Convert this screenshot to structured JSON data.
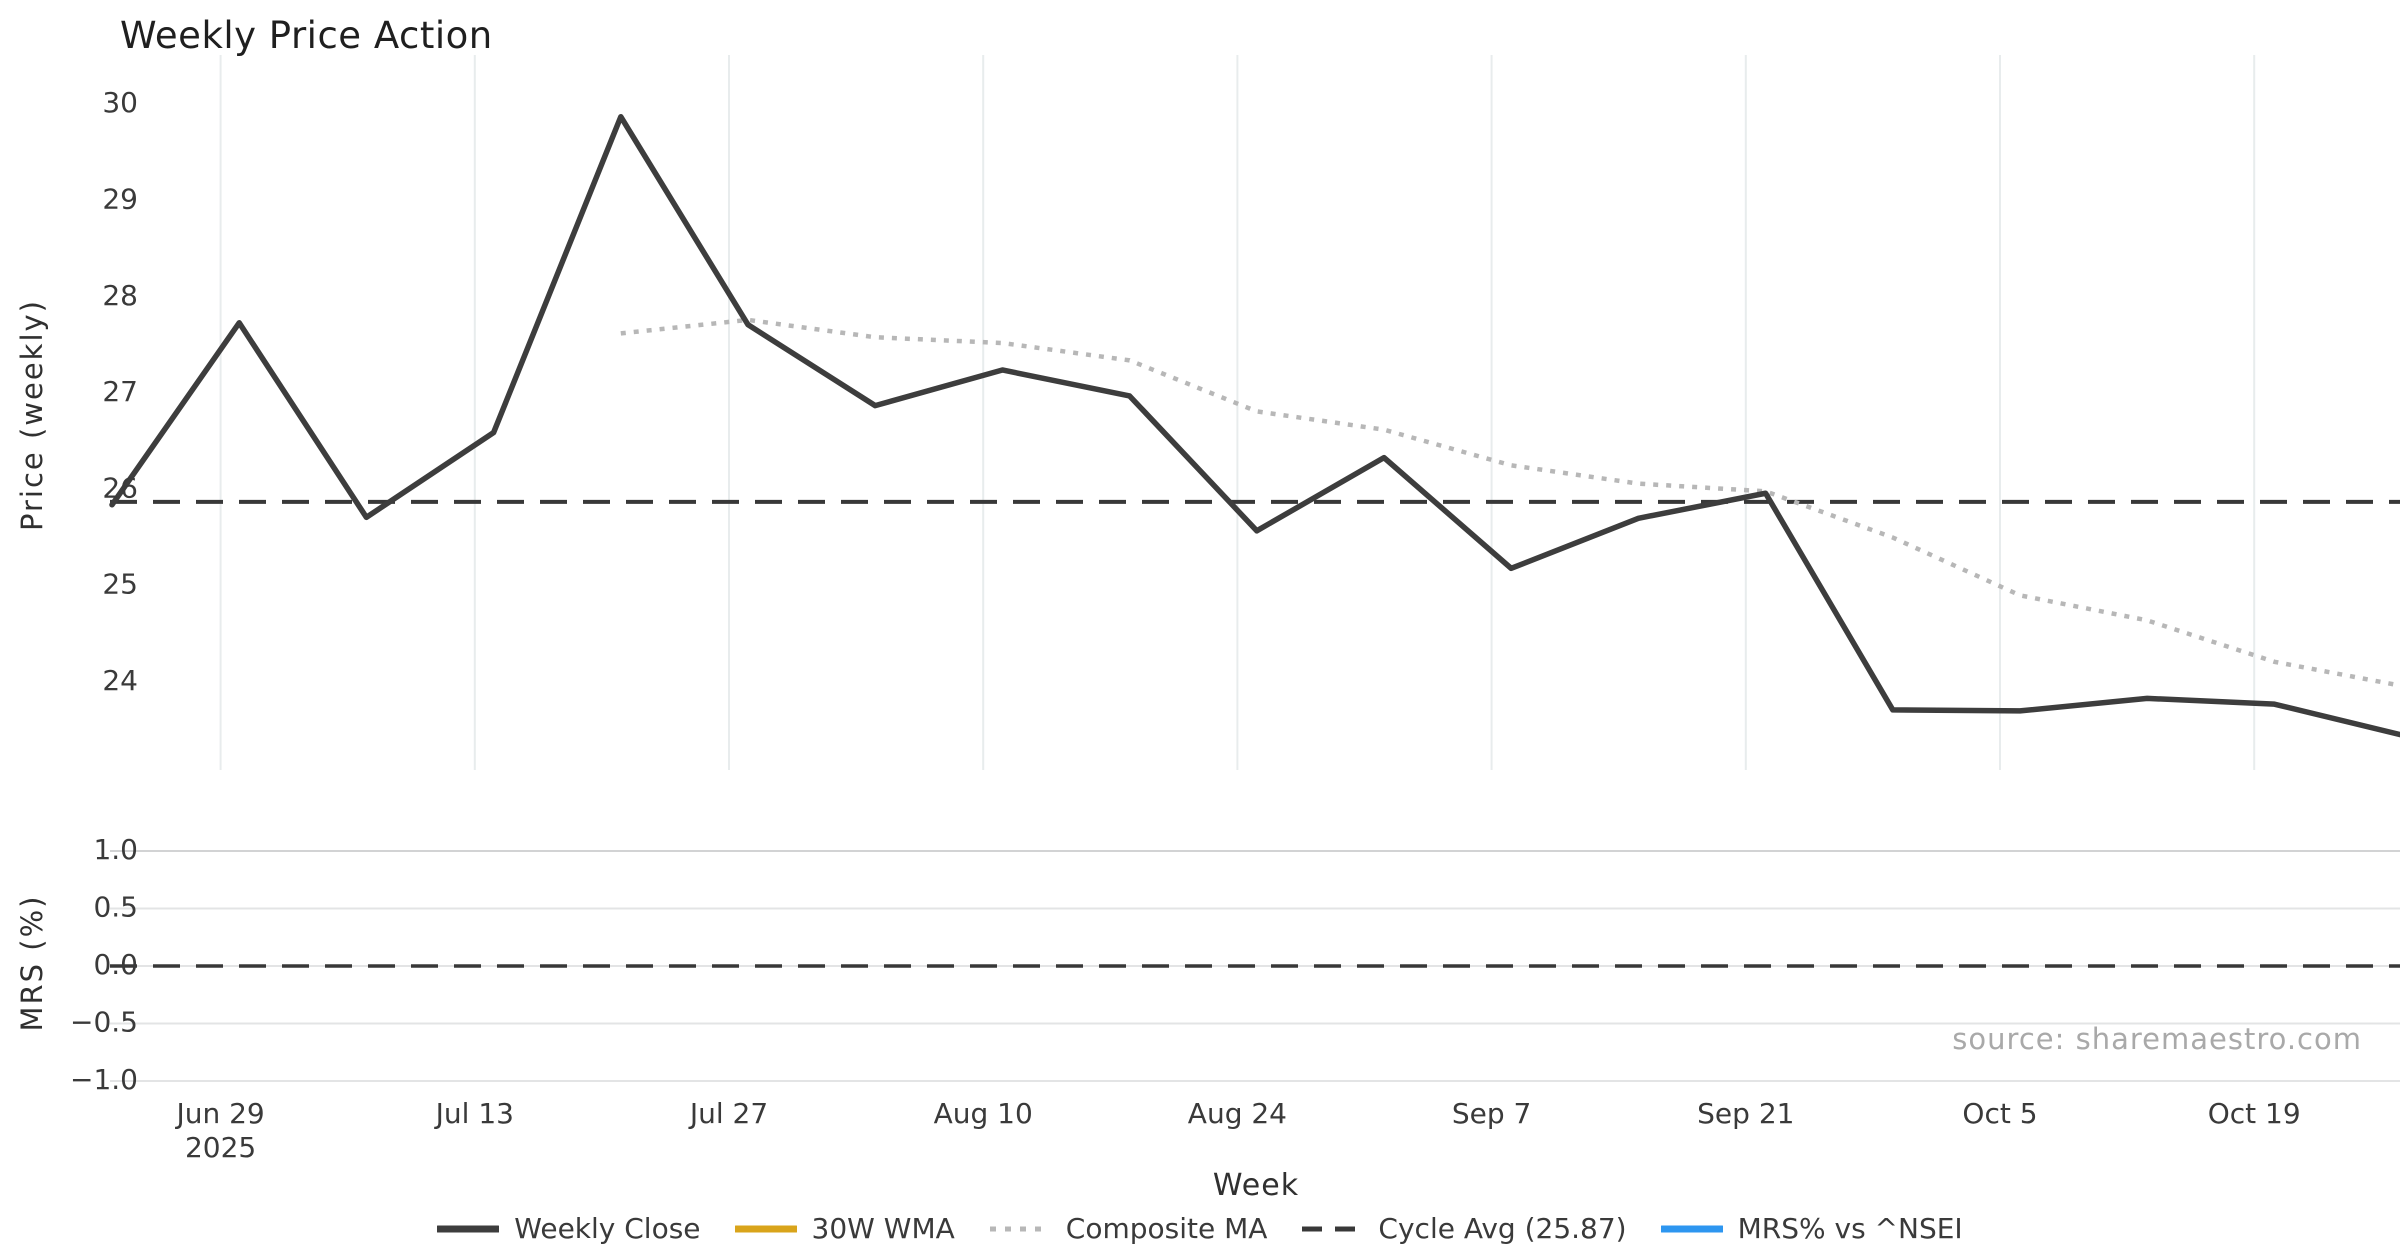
{
  "header": {
    "title": "Weekly Price Action"
  },
  "axes": {
    "price_ylabel": "Price (weekly)",
    "mrs_ylabel": "MRS (%)",
    "xlabel": "Week"
  },
  "source_note": "source: sharemaestro.com",
  "colors": {
    "weekly_close": "#3d3d3d",
    "wma_30w": "#d9a41b",
    "composite_ma": "#b7b7b7",
    "cycle_avg": "#383838",
    "mrs_line": "#2d96f0",
    "grid_vertical": "#e8eced",
    "grid_horizontal": "#e3e4e5",
    "grid_horizontal_top": "#d2d3d4",
    "tick_text": "#3a3a3a",
    "source_text": "#a9a9a9"
  },
  "legend": [
    {
      "label": "Weekly Close",
      "color": "#3d3d3d",
      "style": "solid"
    },
    {
      "label": "30W WMA",
      "color": "#d9a41b",
      "style": "solid"
    },
    {
      "label": "Composite MA",
      "color": "#b7b7b7",
      "style": "dotted"
    },
    {
      "label": "Cycle Avg (25.87)",
      "color": "#383838",
      "style": "dashed"
    },
    {
      "label": "MRS% vs ^NSEI",
      "color": "#2d96f0",
      "style": "solid"
    }
  ],
  "chart_data": {
    "type": "line",
    "title": "Weekly Price Action",
    "xlabel": "Week",
    "legend_position": "bottom-center",
    "panels": [
      {
        "id": "price",
        "ylabel": "Price (weekly)",
        "ytick_labels": [
          "30",
          "29",
          "28",
          "27",
          "26",
          "25",
          "24"
        ],
        "ytick_values": [
          30,
          29,
          28,
          27,
          26,
          25,
          24
        ],
        "ylim": [
          23.1,
          30.5
        ],
        "grid": "vertical-only"
      },
      {
        "id": "mrs",
        "ylabel": "MRS (%)",
        "ytick_labels": [
          "1.0",
          "0.5",
          "0.0",
          "−0.5",
          "−1.0"
        ],
        "ytick_values": [
          1.0,
          0.5,
          0.0,
          -0.5,
          -1.0
        ],
        "ylim": [
          -1.05,
          1.05
        ],
        "grid": "horizontal-only"
      }
    ],
    "x_ticks": [
      {
        "label": "Jun 29",
        "sublabel": "2025"
      },
      {
        "label": "Jul 13"
      },
      {
        "label": "Jul 27"
      },
      {
        "label": "Aug 10"
      },
      {
        "label": "Aug 24"
      },
      {
        "label": "Sep 7"
      },
      {
        "label": "Sep 21"
      },
      {
        "label": "Oct 5"
      },
      {
        "label": "Oct 19"
      }
    ],
    "weeks_per_tick": 2,
    "series": [
      {
        "name": "Weekly Close",
        "panel": "price",
        "style": "solid",
        "color": "#3d3d3d",
        "values": [
          25.84,
          27.73,
          25.71,
          26.59,
          29.87,
          27.71,
          26.87,
          27.24,
          26.97,
          25.57,
          26.33,
          25.18,
          25.7,
          25.96,
          23.71,
          23.7,
          23.83,
          23.77,
          23.45
        ]
      },
      {
        "name": "30W WMA",
        "panel": "price",
        "style": "solid",
        "color": "#d9a41b",
        "values": []
      },
      {
        "name": "Composite MA",
        "panel": "price",
        "style": "dotted",
        "color": "#b7b7b7",
        "values": [
          null,
          null,
          null,
          null,
          27.62,
          27.76,
          27.58,
          27.52,
          27.34,
          26.81,
          26.62,
          26.25,
          26.06,
          25.98,
          25.5,
          24.9,
          24.64,
          24.21,
          23.96
        ]
      },
      {
        "name": "Cycle Avg (25.87)",
        "panel": "price",
        "style": "dashed",
        "color": "#383838",
        "value": 25.87
      },
      {
        "name": "MRS% vs ^NSEI",
        "panel": "mrs",
        "style": "solid",
        "color": "#2d96f0",
        "values": []
      }
    ],
    "mrs_reference_line": 0.0
  }
}
